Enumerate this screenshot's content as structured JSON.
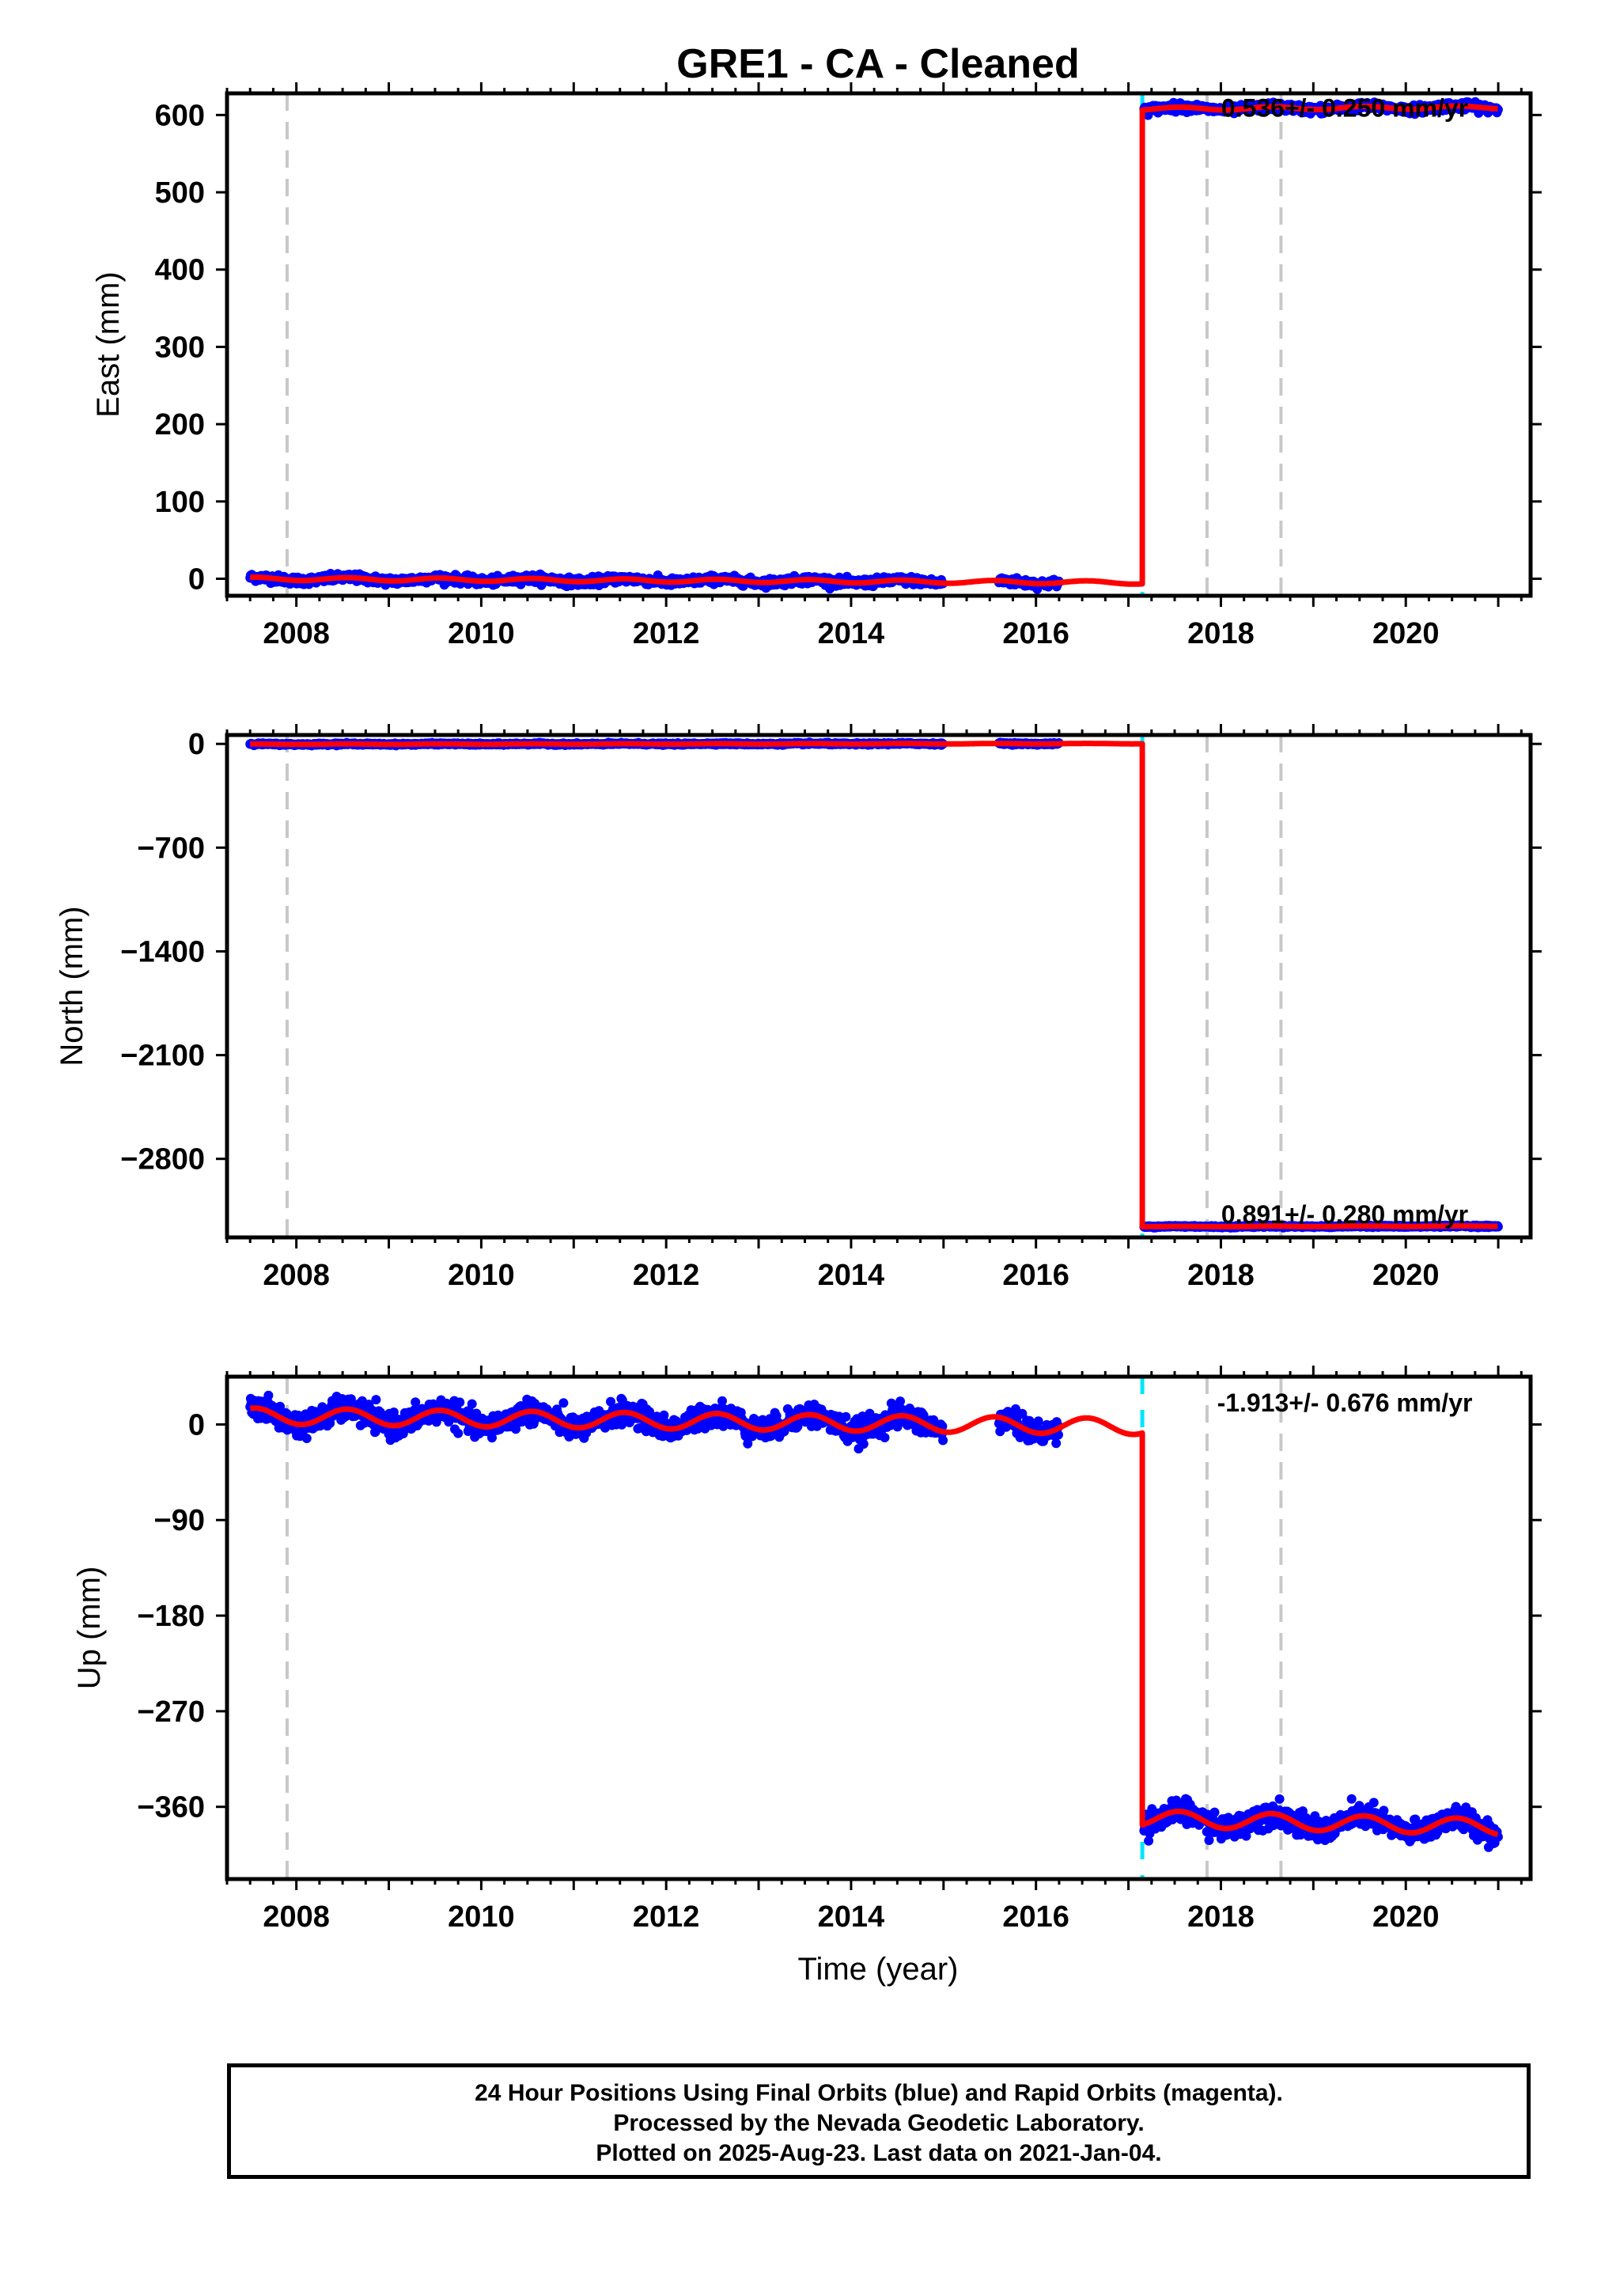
{
  "title": "GRE1  - CA - Cleaned",
  "xlabel": "Time (year)",
  "caption": [
    "24 Hour Positions Using Final Orbits (blue) and Rapid Orbits (magenta).",
    "Processed by the Nevada Geodetic Laboratory.",
    "Plotted on 2025-Aug-23. Last data on 2021-Jan-04."
  ],
  "colors": {
    "data": "#0000ff",
    "model": "#ff0000",
    "event_line": "#c8c8c8",
    "offset_line": "#00e5ff",
    "frame": "#000000"
  },
  "chart_data": [
    {
      "type": "scatter",
      "ylabel": "East (mm)",
      "xlim": [
        2007.25,
        2021.35
      ],
      "ylim": [
        -22,
        628
      ],
      "xticks": [
        2008,
        2010,
        2012,
        2014,
        2016,
        2018,
        2020
      ],
      "yticks": [
        0,
        100,
        200,
        300,
        400,
        500,
        600
      ],
      "ytick_labels": [
        "0",
        "100",
        "200",
        "300",
        "400",
        "500",
        "600"
      ],
      "rate_label": "0.536+/- 0.250 mm/yr",
      "event_lines": [
        2007.9,
        2017.85,
        2018.65
      ],
      "offset_line": 2017.15,
      "data_segments": [
        [
          2007.5,
          2015.0
        ],
        [
          2015.6,
          2016.25
        ],
        [
          2017.17,
          2021.0
        ]
      ],
      "series": [
        {
          "role": "data",
          "values_before_step": 0,
          "values_after_step": 608,
          "noise": 2.5,
          "annual_amplitude": 2.0
        },
        {
          "role": "model",
          "before_step": {
            "x": [
              2007.5,
              2017.15
            ],
            "y": [
              0,
              -5
            ]
          },
          "after_step": {
            "x": [
              2017.15,
              2021.0
            ],
            "y": [
              608,
              610
            ]
          },
          "annual_amplitude": 2.0
        }
      ]
    },
    {
      "type": "scatter",
      "ylabel": "North (mm)",
      "xlim": [
        2007.25,
        2021.35
      ],
      "ylim": [
        -3330,
        60
      ],
      "xticks": [
        2008,
        2010,
        2012,
        2014,
        2016,
        2018,
        2020
      ],
      "yticks": [
        0,
        -700,
        -1400,
        -2100,
        -2800
      ],
      "ytick_labels": [
        "0",
        "−700",
        "−1400",
        "−2100",
        "−2800"
      ],
      "rate_label": "0.891+/- 0.280 mm/yr",
      "event_lines": [
        2007.9,
        2017.85,
        2018.65
      ],
      "offset_line": 2017.15,
      "data_segments": [
        [
          2007.5,
          2015.0
        ],
        [
          2015.6,
          2016.25
        ],
        [
          2017.17,
          2021.0
        ]
      ],
      "series": [
        {
          "role": "data",
          "values_before_step": 0,
          "values_after_step": -3255,
          "noise": 3.0,
          "annual_amplitude": 1.5
        },
        {
          "role": "model",
          "before_step": {
            "x": [
              2007.5,
              2017.15
            ],
            "y": [
              -2,
              2
            ]
          },
          "after_step": {
            "x": [
              2017.15,
              2021.0
            ],
            "y": [
              -3257,
              -3254
            ]
          },
          "annual_amplitude": 1.5
        }
      ]
    },
    {
      "type": "scatter",
      "ylabel": "Up (mm)",
      "xlim": [
        2007.25,
        2021.35
      ],
      "ylim": [
        -428,
        45
      ],
      "xticks": [
        2008,
        2010,
        2012,
        2014,
        2016,
        2018,
        2020
      ],
      "yticks": [
        0,
        -90,
        -180,
        -270,
        -360
      ],
      "ytick_labels": [
        "0",
        "−90",
        "−180",
        "−270",
        "−360"
      ],
      "rate_label": "-1.913+/- 0.676 mm/yr",
      "event_lines": [
        2007.9,
        2017.85,
        2018.65
      ],
      "offset_line": 2017.15,
      "data_segments": [
        [
          2007.5,
          2015.0
        ],
        [
          2015.6,
          2016.25
        ],
        [
          2017.17,
          2021.0
        ]
      ],
      "series": [
        {
          "role": "data",
          "values_before_step": 5,
          "values_after_step": -375,
          "noise": 5.5,
          "annual_amplitude": 8.0
        },
        {
          "role": "model",
          "before_step": {
            "x": [
              2007.5,
              2017.15
            ],
            "y": [
              8,
              -2
            ]
          },
          "after_step": {
            "x": [
              2017.15,
              2021.0
            ],
            "y": [
              -371,
              -379
            ]
          },
          "annual_amplitude": 7.5
        }
      ]
    }
  ]
}
